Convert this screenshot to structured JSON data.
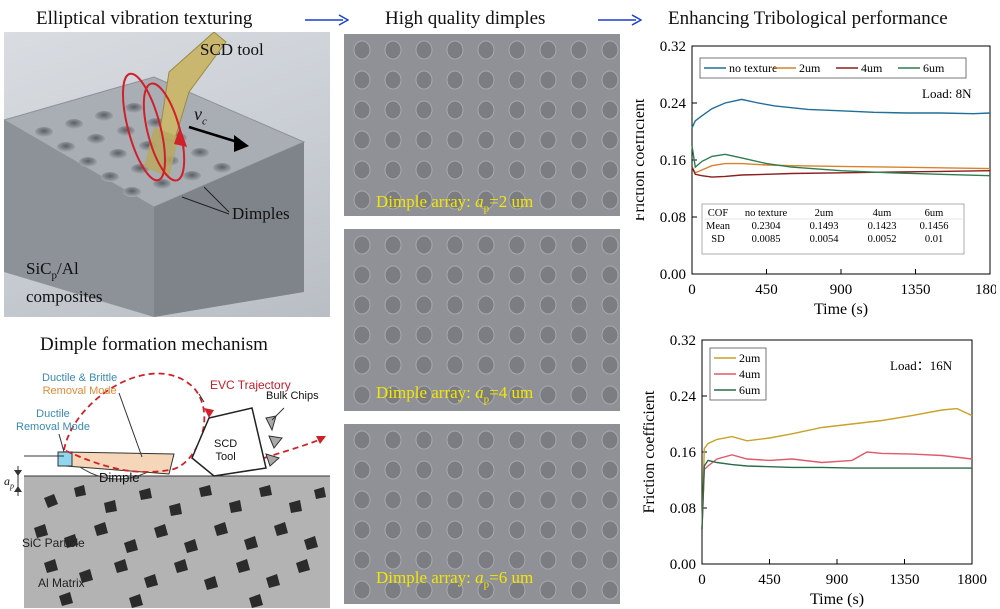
{
  "headers": {
    "left": "Elliptical vibration texturing",
    "middle": "High quality dimples",
    "right": "Enhancing Tribological performance",
    "mechanism": "Dimple formation mechanism"
  },
  "render_labels": {
    "scd_tool": "SCD tool",
    "vc": "v",
    "vc_sub": "c",
    "dimples": "Dimples",
    "composite_line1_a": "SiC",
    "composite_line1_sub": "p",
    "composite_line1_b": "/Al",
    "composite_line2": "composites"
  },
  "mechanism_labels": {
    "ductile_brittle": "Ductile & Brittle",
    "removal_mode": "Removal Mode",
    "evc_trajectory": "EVC Trajectory",
    "bulk_chips": "Bulk Chips",
    "ductile": "Ductile",
    "ductile_removal_mode": "Removal Mode",
    "scd": "SCD",
    "tool": "Tool",
    "dimple": "Dimple",
    "ap": "a",
    "ap_sub": "p",
    "sic_particle": "SiC Particle",
    "al_matrix": "Al Matrix"
  },
  "dimple_arrays": [
    {
      "prefix": "Dimple array: ",
      "a": "a",
      "sub": "p",
      "suffix": "=2 um"
    },
    {
      "prefix": "Dimple array: ",
      "a": "a",
      "sub": "p",
      "suffix": "=4 um"
    },
    {
      "prefix": "Dimple array: ",
      "a": "a",
      "sub": "p",
      "suffix": "=6 um"
    }
  ],
  "chart_data": [
    {
      "type": "line",
      "title": "",
      "xlabel": "Time (s)",
      "ylabel": "Friction coefficient",
      "xlim": [
        0,
        1800
      ],
      "ylim": [
        0,
        0.32
      ],
      "xticks": [
        0,
        450,
        900,
        1350,
        1800
      ],
      "yticks": [
        0.0,
        0.08,
        0.16,
        0.24,
        0.32
      ],
      "annotation": "Load:  8N",
      "legend": [
        "no texture",
        "2um",
        "4um",
        "6um"
      ],
      "series": [
        {
          "name": "no texture",
          "color": "#1f6f98",
          "x": [
            0,
            20,
            60,
            120,
            200,
            300,
            400,
            500,
            700,
            900,
            1100,
            1300,
            1500,
            1700,
            1800
          ],
          "y": [
            0.205,
            0.215,
            0.222,
            0.232,
            0.24,
            0.245,
            0.24,
            0.236,
            0.231,
            0.229,
            0.227,
            0.226,
            0.226,
            0.225,
            0.226
          ]
        },
        {
          "name": "2um",
          "color": "#d9822b",
          "x": [
            0,
            20,
            60,
            120,
            200,
            300,
            450,
            600,
            900,
            1200,
            1500,
            1800
          ],
          "y": [
            0.15,
            0.142,
            0.146,
            0.152,
            0.155,
            0.155,
            0.153,
            0.152,
            0.151,
            0.15,
            0.149,
            0.148
          ]
        },
        {
          "name": "4um",
          "color": "#8b1e1e",
          "x": [
            0,
            20,
            60,
            120,
            200,
            300,
            450,
            600,
            900,
            1200,
            1500,
            1800
          ],
          "y": [
            0.15,
            0.14,
            0.138,
            0.136,
            0.137,
            0.139,
            0.14,
            0.141,
            0.142,
            0.143,
            0.144,
            0.145
          ]
        },
        {
          "name": "6um",
          "color": "#2e7d4f",
          "x": [
            0,
            20,
            60,
            120,
            200,
            300,
            450,
            600,
            900,
            1200,
            1500,
            1800
          ],
          "y": [
            0.18,
            0.15,
            0.158,
            0.165,
            0.168,
            0.163,
            0.155,
            0.15,
            0.145,
            0.142,
            0.14,
            0.138
          ]
        }
      ],
      "table": {
        "headers": [
          "COF",
          "no texture",
          "2um",
          "4um",
          "6um"
        ],
        "rows": [
          [
            "Mean",
            "0.2304",
            "0.1493",
            "0.1423",
            "0.1456"
          ],
          [
            "SD",
            "0.0085",
            "0.0054",
            "0.0052",
            "0.01"
          ]
        ]
      }
    },
    {
      "type": "line",
      "title": "",
      "xlabel": "Time (s)",
      "ylabel": "Friction coefficient",
      "xlim": [
        0,
        1800
      ],
      "ylim": [
        0,
        0.32
      ],
      "xticks": [
        0,
        450,
        900,
        1350,
        1800
      ],
      "yticks": [
        0.0,
        0.08,
        0.16,
        0.24,
        0.32
      ],
      "annotation": "Load：16N",
      "legend": [
        "2um",
        "4um",
        "6um"
      ],
      "series": [
        {
          "name": "2um",
          "color": "#c9a227",
          "x": [
            0,
            15,
            40,
            100,
            200,
            300,
            450,
            600,
            800,
            1000,
            1200,
            1400,
            1600,
            1700,
            1800
          ],
          "y": [
            0.05,
            0.165,
            0.172,
            0.178,
            0.182,
            0.176,
            0.18,
            0.186,
            0.195,
            0.2,
            0.205,
            0.212,
            0.22,
            0.222,
            0.212
          ]
        },
        {
          "name": "4um",
          "color": "#e05a6b",
          "x": [
            0,
            15,
            40,
            100,
            200,
            300,
            450,
            600,
            800,
            1000,
            1100,
            1200,
            1400,
            1600,
            1800
          ],
          "y": [
            0.05,
            0.135,
            0.14,
            0.15,
            0.156,
            0.15,
            0.148,
            0.15,
            0.145,
            0.148,
            0.16,
            0.158,
            0.157,
            0.155,
            0.15
          ]
        },
        {
          "name": "6um",
          "color": "#2e6b4a",
          "x": [
            0,
            15,
            40,
            100,
            200,
            300,
            450,
            600,
            800,
            1000,
            1200,
            1400,
            1600,
            1800
          ],
          "y": [
            0.05,
            0.14,
            0.148,
            0.145,
            0.142,
            0.14,
            0.139,
            0.138,
            0.138,
            0.137,
            0.137,
            0.137,
            0.137,
            0.137
          ]
        }
      ]
    }
  ]
}
